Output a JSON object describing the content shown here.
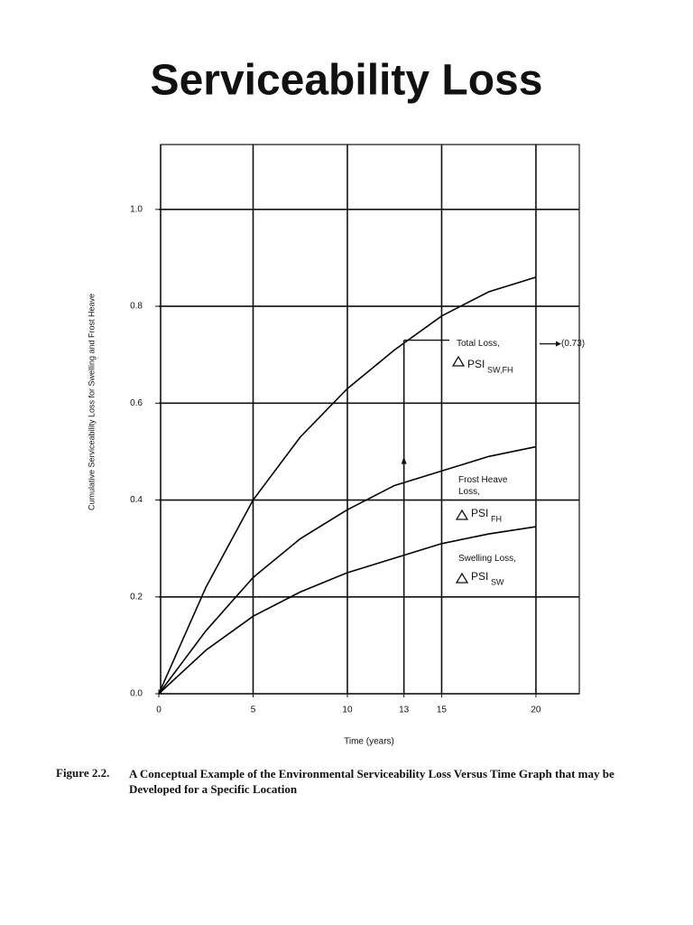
{
  "slide_title": "Serviceability Loss",
  "caption": {
    "number": "Figure 2.2.",
    "text": "A Conceptual Example of the Environmental Serviceability Loss Versus Time Graph that may be Developed for a Specific Location"
  },
  "chart_data": {
    "type": "line",
    "x_label": "Time (years)",
    "y_label": "Cumulative Serviceability Loss for Swelling and Frost Heave",
    "x": [
      0,
      2.5,
      5,
      7.5,
      10,
      12.5,
      15,
      17.5,
      20
    ],
    "series": [
      {
        "name": "Total Loss,",
        "symbol": "PSI",
        "subscript": "SW,FH",
        "color": "#000000",
        "values": [
          0,
          0.22,
          0.4,
          0.53,
          0.63,
          0.71,
          0.78,
          0.83,
          0.86
        ]
      },
      {
        "name": "Frost Heave Loss,",
        "symbol": "PSI",
        "subscript": "FH",
        "color": "#000000",
        "values": [
          0,
          0.13,
          0.24,
          0.32,
          0.38,
          0.43,
          0.46,
          0.49,
          0.51
        ]
      },
      {
        "name": "Swelling Loss,",
        "symbol": "PSI",
        "subscript": "SW",
        "color": "#000000",
        "values": [
          0,
          0.09,
          0.16,
          0.21,
          0.25,
          0.28,
          0.31,
          0.33,
          0.345
        ]
      }
    ],
    "annotations": [
      {
        "x": 13,
        "value": 0.73,
        "label": "(0.73)"
      }
    ],
    "xlim": [
      0,
      22.3
    ],
    "ylim": [
      0,
      1.134
    ],
    "xticks": [
      0,
      5,
      10,
      13,
      15,
      20
    ],
    "yticks": [
      {
        "value": 0,
        "label": "0.0"
      },
      0.2,
      0.4,
      0.6,
      0.8,
      {
        "value": 1,
        "label": "1.0"
      }
    ],
    "grid": true
  }
}
